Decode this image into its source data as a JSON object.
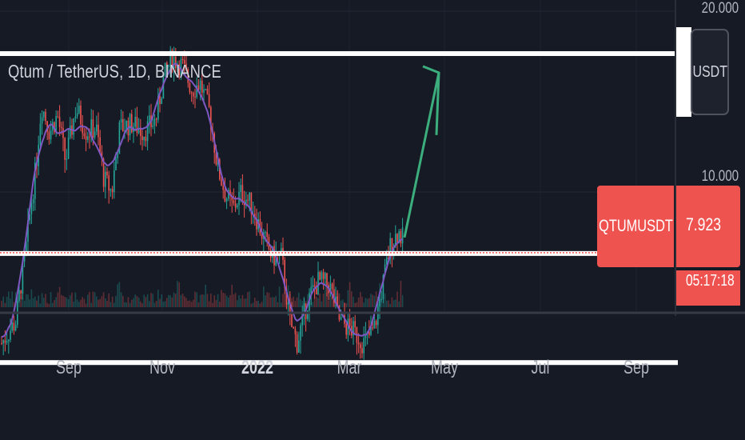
{
  "symbol": {
    "title": "Qtum / TetherUS, 1D, BINANCE",
    "ticker": "QTUMUSDT",
    "currency": "USDT",
    "last_price": "7.923",
    "countdown": "05:17:18"
  },
  "colors": {
    "background": "#161a25",
    "candle_up": "#26a69a",
    "candle_down": "#ef5350",
    "moving_average": "#7e57c2",
    "arrow": "#3cae7d",
    "level_lines": "#ffffff",
    "price_line": "#ef5350"
  },
  "chart_data": {
    "type": "candlestick",
    "title": "Qtum / TetherUS, 1D, BINANCE",
    "price_axis_ticks": [
      "20.000",
      "10.000"
    ],
    "time_axis_ticks": [
      "Sep",
      "Nov",
      "2022",
      "Mar",
      "May",
      "Jul",
      "Sep"
    ],
    "last_price": 7.923,
    "horizontal_levels": [
      17.0,
      7.9,
      5.2
    ],
    "y_scale": "log",
    "arrow": {
      "from_price": 8.4,
      "to_price": 15.8
    }
  }
}
